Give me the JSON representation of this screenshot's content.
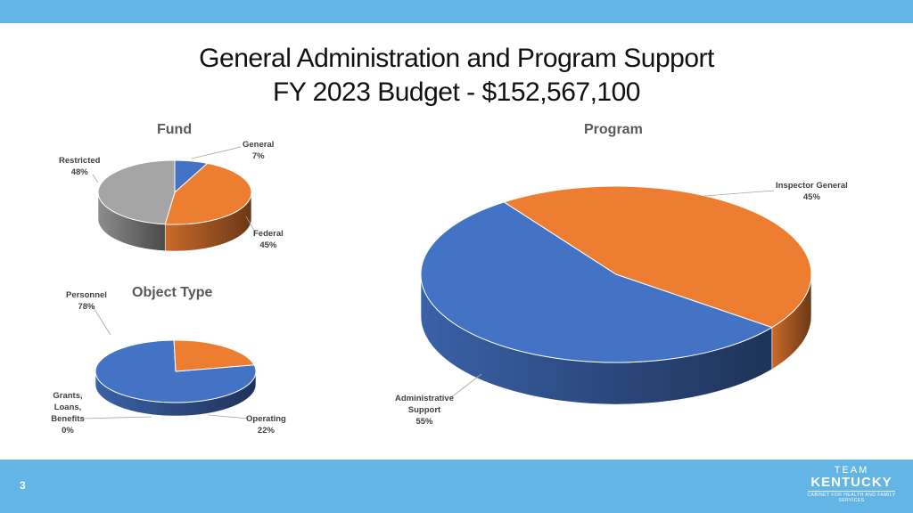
{
  "header": {
    "title_line1": "General Administration and Program Support",
    "title_line2": "FY 2023 Budget - $152,567,100"
  },
  "footer": {
    "page_number": "3",
    "logo": {
      "team": "TEAM",
      "state": "KENTUCKY",
      "agency": "CABINET FOR HEALTH AND FAMILY SERVICES"
    }
  },
  "colors": {
    "blue": "#4472c4",
    "orange": "#ed7d31",
    "gray": "#a5a5a5",
    "bar": "#62b5e5"
  },
  "chart_data": [
    {
      "type": "pie",
      "title": "Fund",
      "slices": [
        {
          "label": "General",
          "value": 7,
          "display": "7%",
          "color": "#4472c4"
        },
        {
          "label": "Federal",
          "value": 45,
          "display": "45%",
          "color": "#ed7d31"
        },
        {
          "label": "Restricted",
          "value": 48,
          "display": "48%",
          "color": "#a5a5a5"
        }
      ]
    },
    {
      "type": "pie",
      "title": "Object Type",
      "slices": [
        {
          "label": "Personnel",
          "value": 78,
          "display": "78%",
          "color": "#4472c4"
        },
        {
          "label": "Operating",
          "value": 22,
          "display": "22%",
          "color": "#ed7d31"
        },
        {
          "label": "Grants, Loans, Benefits",
          "value": 0,
          "display": "0%",
          "color": "#a5a5a5"
        }
      ]
    },
    {
      "type": "pie",
      "title": "Program",
      "slices": [
        {
          "label": "Administrative Support",
          "value": 55,
          "display": "55%",
          "color": "#4472c4"
        },
        {
          "label": "Inspector General",
          "value": 45,
          "display": "45%",
          "color": "#ed7d31"
        }
      ]
    }
  ]
}
